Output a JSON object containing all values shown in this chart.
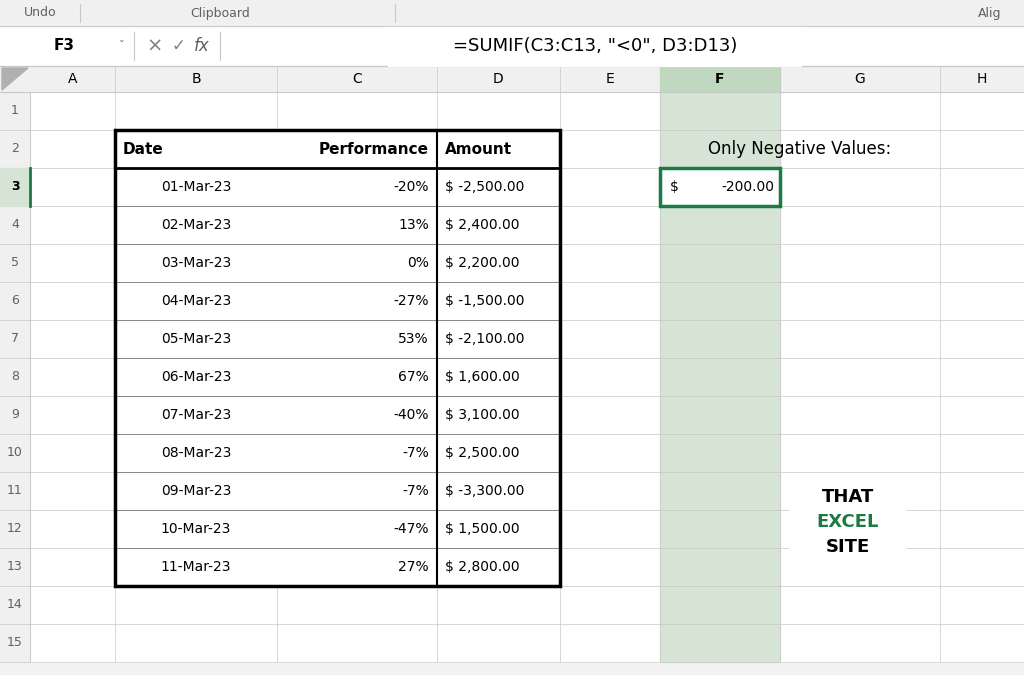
{
  "formula_bar_cell": "F3",
  "formula_bar_text": "=SUMIF(C3:C13, \"<0\", D3:D13)",
  "col_headers": [
    "A",
    "B",
    "C",
    "D",
    "E",
    "F",
    "G",
    "H"
  ],
  "table_headers": [
    "Date",
    "Performance",
    "Amount"
  ],
  "dates": [
    "01-Mar-23",
    "02-Mar-23",
    "03-Mar-23",
    "04-Mar-23",
    "05-Mar-23",
    "06-Mar-23",
    "07-Mar-23",
    "08-Mar-23",
    "09-Mar-23",
    "10-Mar-23",
    "11-Mar-23"
  ],
  "performance": [
    "-20%",
    "13%",
    "0%",
    "-27%",
    "53%",
    "67%",
    "-40%",
    "-7%",
    "-7%",
    "-47%",
    "27%"
  ],
  "amounts": [
    "$ -2,500.00",
    "$ 2,400.00",
    "$ 2,200.00",
    "$ -1,500.00",
    "$ -2,100.00",
    "$ 1,600.00",
    "$ 3,100.00",
    "$ 2,500.00",
    "$ -3,300.00",
    "$ 1,500.00",
    "$ 2,800.00"
  ],
  "label_only_negative": "Only Negative Values:",
  "bg_color": "#f2f2f2",
  "white": "#ffffff",
  "mid_gray": "#c8c8c8",
  "dark_gray": "#606060",
  "black": "#000000",
  "green": "#1e7a45",
  "active_col_bg": "#d6e4d6",
  "active_col_header_bg": "#c0d8c0",
  "row_header_bg": "#f0f0f0",
  "col_header_bg": "#f0f0f0",
  "logo_green": "#1e7a45",
  "toolbar_bg": "#f0f0f0",
  "formula_bar_bg": "#ffffff",
  "cell_f3_result_dollar": "$",
  "cell_f3_result_value": "-200.00"
}
